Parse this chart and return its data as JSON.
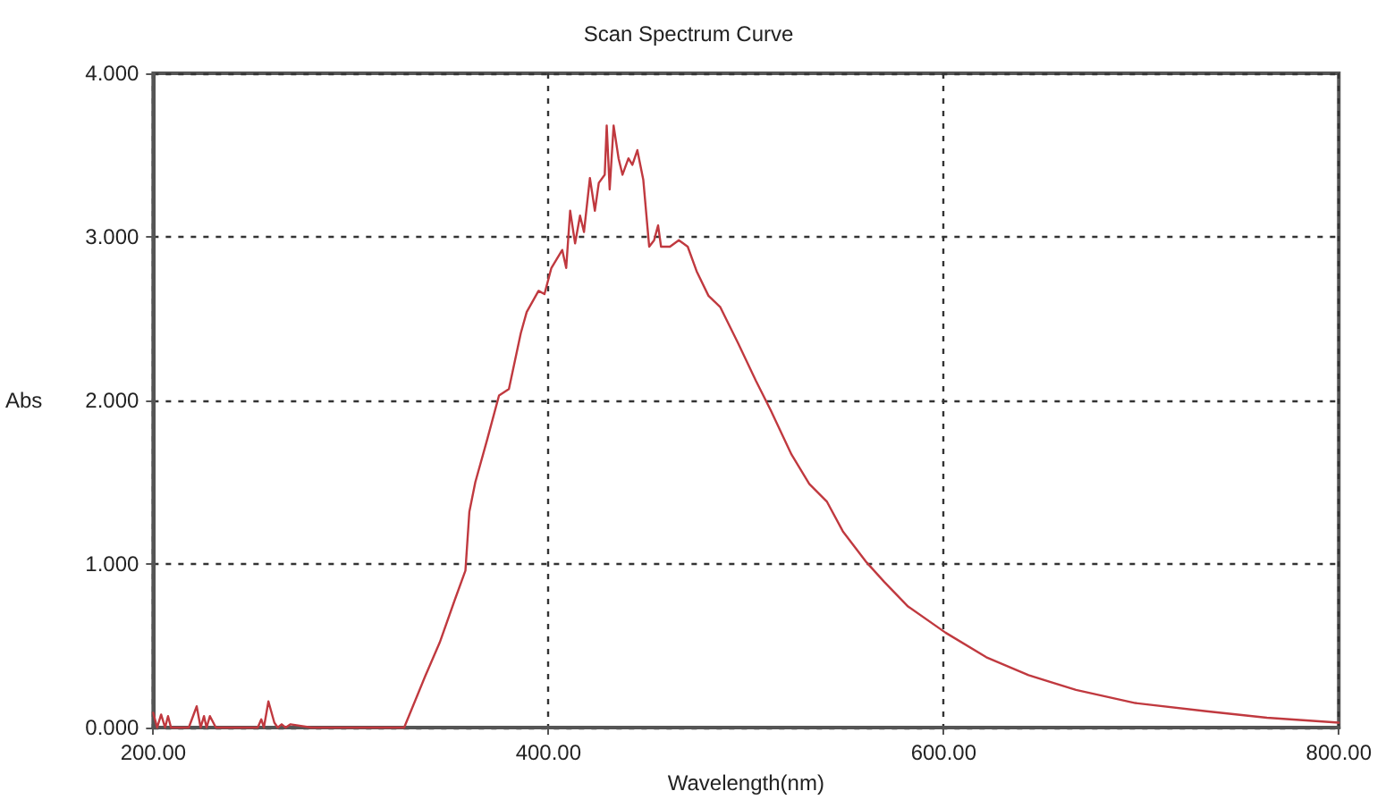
{
  "chart_data": {
    "type": "line",
    "title": "Scan Spectrum Curve",
    "xlabel": "Wavelength(nm)",
    "ylabel": "Abs",
    "xlim": [
      200,
      800
    ],
    "ylim": [
      0,
      4
    ],
    "xticks": [
      {
        "value": 200,
        "label": "200.00"
      },
      {
        "value": 400,
        "label": "400.00"
      },
      {
        "value": 600,
        "label": "600.00"
      },
      {
        "value": 800,
        "label": "800.00"
      }
    ],
    "yticks": [
      {
        "value": 0,
        "label": "0.000"
      },
      {
        "value": 1,
        "label": "1.000"
      },
      {
        "value": 2,
        "label": "2.000"
      },
      {
        "value": 3,
        "label": "3.000"
      },
      {
        "value": 4,
        "label": "4.000"
      }
    ],
    "grid": true,
    "marker": "none",
    "line_style": "solid",
    "series": [
      {
        "color": "#c0393f",
        "x": [
          200,
          202,
          204,
          206,
          207.5,
          209,
          210,
          214,
          218,
          222,
          224,
          225.7,
          227,
          228.7,
          231.7,
          240,
          252.9,
          254.7,
          256,
          258.3,
          261.3,
          263,
          265,
          267,
          269.5,
          280,
          300,
          327,
          337.5,
          345,
          352.6,
          358,
          360,
          363,
          369,
          375,
          380,
          386,
          389,
          395,
          398,
          401.5,
          407,
          409,
          411,
          413.5,
          416,
          418,
          421,
          423.5,
          425.5,
          428.5,
          429.5,
          431,
          433,
          435.5,
          437.5,
          440.5,
          442.5,
          445,
          448,
          451,
          453.5,
          455.5,
          457,
          461.5,
          466,
          470.5,
          475,
          481,
          487,
          496,
          505,
          512.5,
          523,
          532,
          541,
          549,
          561,
          570,
          582,
          601,
          621.6,
          643,
          667,
          697,
          733,
          763.6,
          800
        ],
        "values": [
          0.09,
          0,
          0.08,
          0,
          0.07,
          0,
          0,
          0,
          0,
          0.13,
          0,
          0.07,
          0,
          0.07,
          0,
          0,
          0,
          0.05,
          0,
          0.16,
          0.03,
          0,
          0.02,
          0,
          0.02,
          0,
          0,
          0,
          0.31,
          0.52,
          0.78,
          0.96,
          1.32,
          1.5,
          1.76,
          2.03,
          2.07,
          2.41,
          2.54,
          2.67,
          2.65,
          2.81,
          2.92,
          2.81,
          3.16,
          2.96,
          3.13,
          3.03,
          3.36,
          3.16,
          3.33,
          3.38,
          3.68,
          3.29,
          3.68,
          3.48,
          3.38,
          3.48,
          3.44,
          3.53,
          3.35,
          2.94,
          2.98,
          3.07,
          2.94,
          2.94,
          2.98,
          2.94,
          2.79,
          2.64,
          2.57,
          2.35,
          2.12,
          1.94,
          1.67,
          1.49,
          1.38,
          1.2,
          1.01,
          0.89,
          0.74,
          0.58,
          0.43,
          0.32,
          0.23,
          0.15,
          0.1,
          0.06,
          0.03
        ]
      }
    ]
  }
}
